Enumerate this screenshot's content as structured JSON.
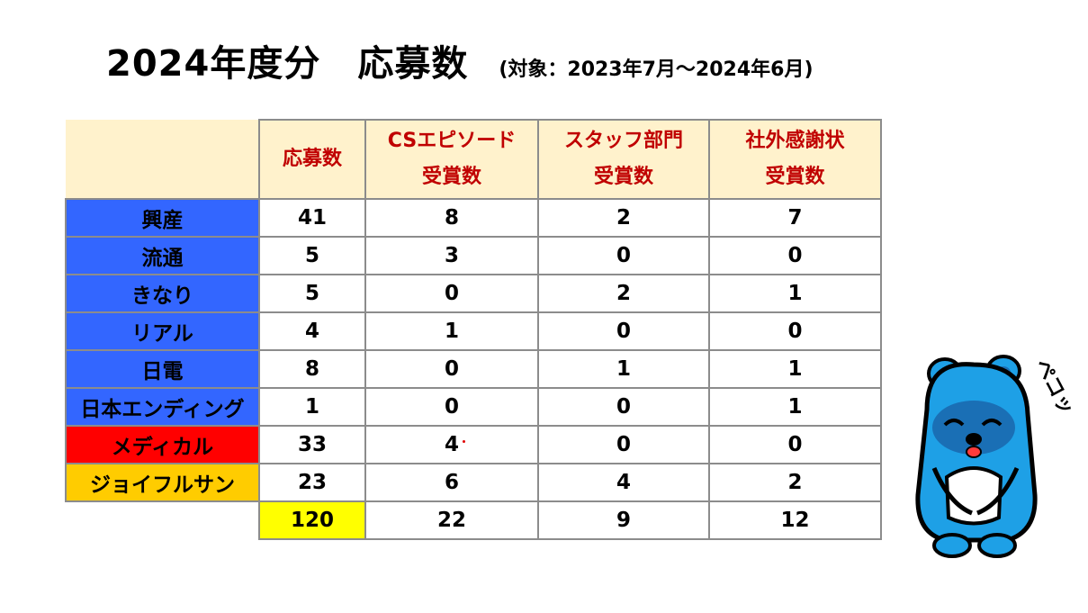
{
  "title": {
    "main": "2024年度分　応募数",
    "sub": "(対象：2023年7月～2024年6月)"
  },
  "table": {
    "headers": [
      {
        "line1": "応募数",
        "line2": ""
      },
      {
        "line1": "CSエピソード",
        "line2": "受賞数"
      },
      {
        "line1": "スタッフ部門",
        "line2": "受賞数"
      },
      {
        "line1": "社外感謝状",
        "line2": "受賞数"
      }
    ],
    "rows": [
      {
        "label": "興産",
        "color": "#3366ff",
        "values": [
          "41",
          "8",
          "2",
          "7"
        ]
      },
      {
        "label": "流通",
        "color": "#3366ff",
        "values": [
          "5",
          "3",
          "0",
          "0"
        ]
      },
      {
        "label": "きなり",
        "color": "#3366ff",
        "values": [
          "5",
          "0",
          "2",
          "1"
        ]
      },
      {
        "label": "リアル",
        "color": "#3366ff",
        "values": [
          "4",
          "1",
          "0",
          "0"
        ]
      },
      {
        "label": "日電",
        "color": "#3366ff",
        "values": [
          "8",
          "0",
          "1",
          "1"
        ]
      },
      {
        "label": "日本エンディング",
        "color": "#3366ff",
        "values": [
          "1",
          "0",
          "0",
          "1"
        ]
      },
      {
        "label": "メディカル",
        "color": "#ff0000",
        "values": [
          "33",
          "4",
          "0",
          "0"
        ]
      },
      {
        "label": "ジョイフルサン",
        "color": "#ffcc00",
        "values": [
          "23",
          "6",
          "4",
          "2"
        ]
      }
    ],
    "totals": [
      "120",
      "22",
      "9",
      "12"
    ]
  },
  "mascot": {
    "icon": "bowing-blue-bear-mascot",
    "speech": "ペコッ"
  }
}
